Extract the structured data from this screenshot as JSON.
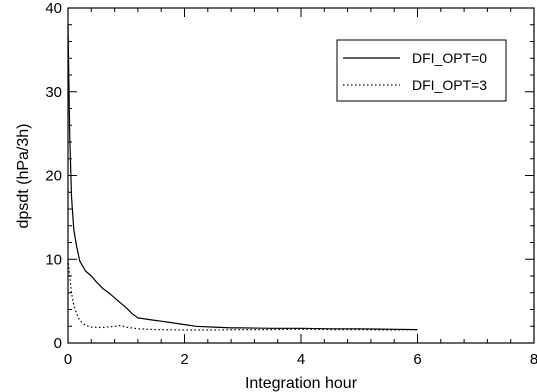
{
  "chart_data": {
    "type": "line",
    "title": "",
    "xlabel": "Integration hour",
    "ylabel": "dpsdt (hPa/3h)",
    "xlim": [
      0,
      8
    ],
    "ylim": [
      0,
      40
    ],
    "xticks": [
      0,
      2,
      4,
      6,
      8
    ],
    "yticks": [
      0,
      10,
      20,
      30,
      40
    ],
    "xtick_labels": [
      "0",
      "2",
      "4",
      "6",
      "8"
    ],
    "ytick_labels": [
      "0",
      "10",
      "20",
      "30",
      "40"
    ],
    "grid": false,
    "legend_position": "top-right",
    "series": [
      {
        "name": "DFI_OPT=0",
        "line_style": "solid",
        "color": "#000000",
        "x": [
          0,
          0.03,
          0.06,
          0.1,
          0.15,
          0.2,
          0.3,
          0.4,
          0.5,
          0.6,
          0.7,
          0.8,
          0.9,
          1.0,
          1.1,
          1.2,
          1.4,
          1.6,
          1.8,
          2.0,
          2.2,
          2.5,
          2.8,
          3.0,
          3.5,
          4.0,
          4.5,
          5.0,
          5.5,
          6.0
        ],
        "y": [
          38,
          25,
          17.5,
          13.5,
          11.5,
          9.8,
          8.6,
          8.0,
          7.2,
          6.5,
          6.0,
          5.4,
          4.8,
          4.2,
          3.5,
          3.0,
          2.8,
          2.6,
          2.4,
          2.2,
          2.0,
          1.9,
          1.8,
          1.8,
          1.75,
          1.75,
          1.7,
          1.7,
          1.65,
          1.6
        ]
      },
      {
        "name": "DFI_OPT=3",
        "line_style": "dotted",
        "color": "#000000",
        "x": [
          0,
          0.03,
          0.06,
          0.1,
          0.15,
          0.2,
          0.3,
          0.4,
          0.6,
          0.8,
          0.9,
          1.0,
          1.2,
          1.5,
          2.0,
          2.5,
          3.0,
          3.5,
          4.0,
          4.5,
          5.0,
          5.5,
          6.0
        ],
        "y": [
          10,
          8,
          6,
          4.5,
          3.5,
          2.7,
          2.1,
          1.9,
          1.85,
          2.0,
          2.1,
          1.9,
          1.7,
          1.6,
          1.55,
          1.55,
          1.6,
          1.6,
          1.65,
          1.6,
          1.6,
          1.55,
          1.6
        ]
      }
    ]
  }
}
